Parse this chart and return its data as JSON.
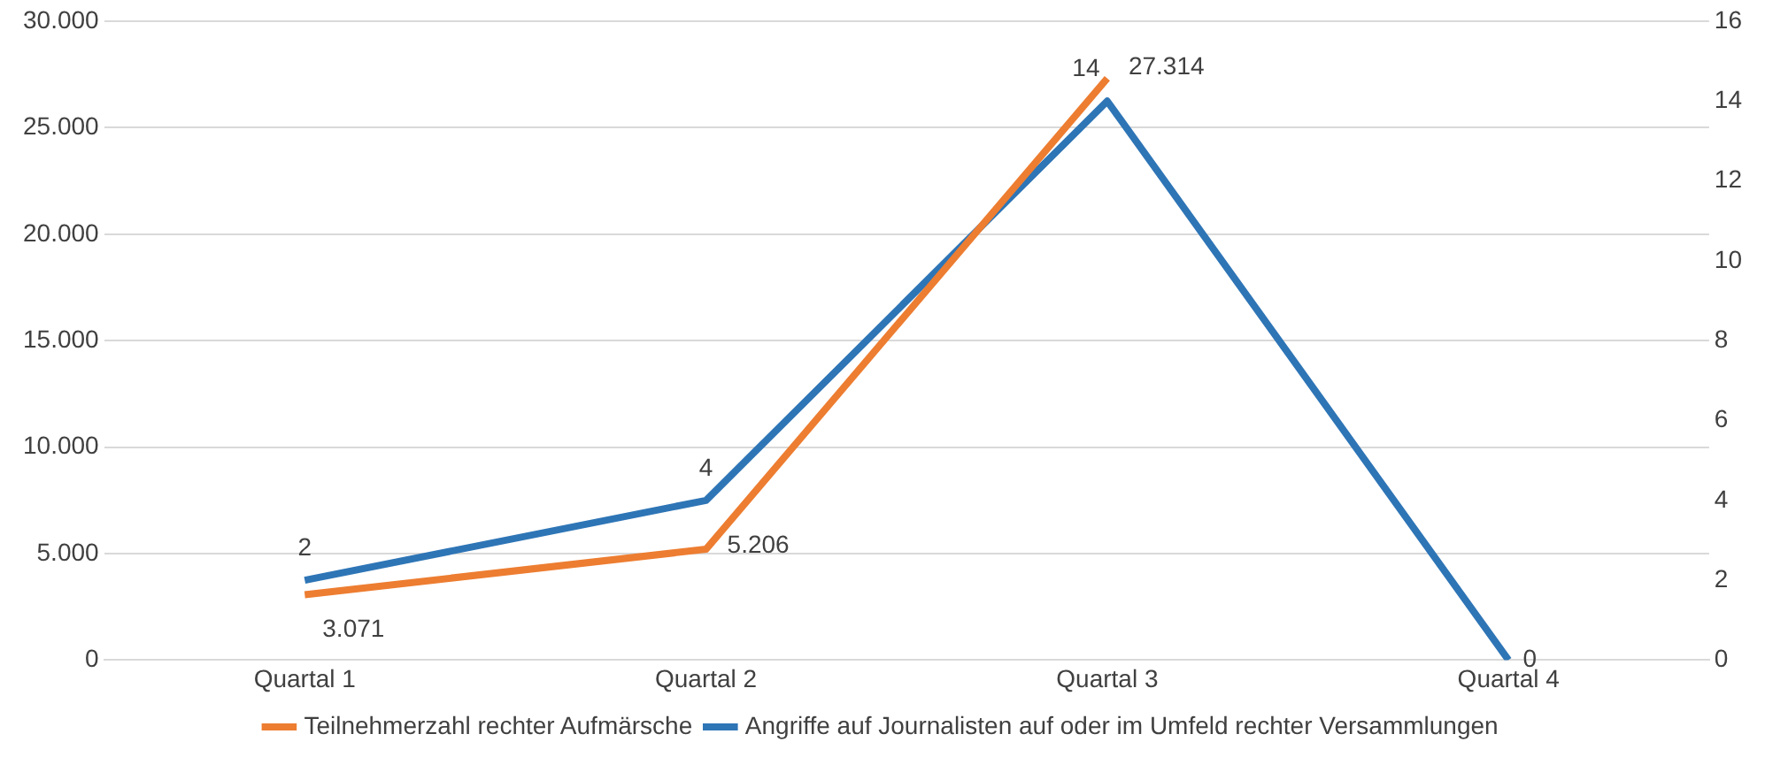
{
  "chart_data": {
    "type": "line",
    "categories": [
      "Quartal 1",
      "Quartal 2",
      "Quartal 3",
      "Quartal 4"
    ],
    "series": [
      {
        "name": "Teilnehmerzahl rechter Aufmärsche",
        "color": "#ed7d31",
        "values": [
          3071,
          5206,
          27314,
          null
        ],
        "value_labels": [
          "3.071",
          "5.206",
          "27.314",
          null
        ]
      },
      {
        "name": "Angriffe auf Journalisten auf oder im Umfeld rechter Versammlungen",
        "color": "#2e75b6",
        "axis": "y2",
        "values": [
          2,
          4,
          14,
          0
        ],
        "value_labels": [
          "2",
          "4",
          "14",
          "0"
        ]
      }
    ],
    "ylim": [
      0,
      30000
    ],
    "yticks": [
      {
        "value": 0,
        "label": "0"
      },
      {
        "value": 5000,
        "label": "5.000"
      },
      {
        "value": 10000,
        "label": "10.000"
      },
      {
        "value": 15000,
        "label": "15.000"
      },
      {
        "value": 20000,
        "label": "20.000"
      },
      {
        "value": 25000,
        "label": "25.000"
      },
      {
        "value": 30000,
        "label": "30.000"
      }
    ],
    "y2lim": [
      0,
      16
    ],
    "y2ticks": [
      0,
      2,
      4,
      6,
      8,
      10,
      12,
      14,
      16
    ],
    "grid": "y",
    "legend": "bottom",
    "marker": "none",
    "line_style": "solid"
  }
}
